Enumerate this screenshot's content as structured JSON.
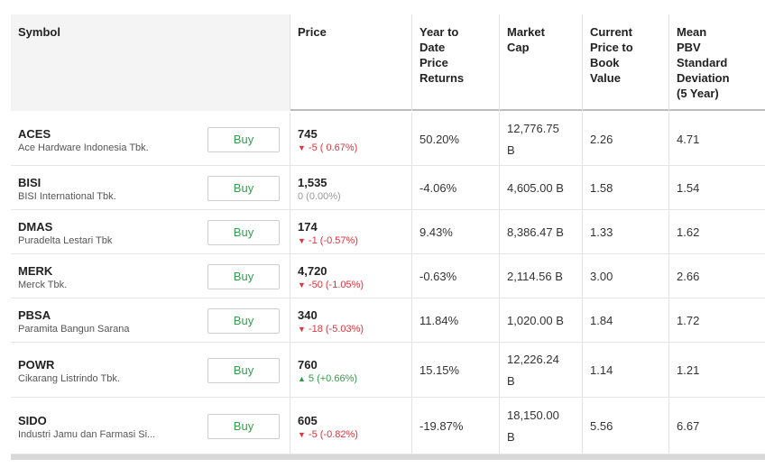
{
  "headers": {
    "symbol": "Symbol",
    "price": "Price",
    "ytd": [
      "Year to",
      "Date",
      "Price",
      "Returns"
    ],
    "mcap": [
      "Market",
      "Cap"
    ],
    "pbv": [
      "Current",
      "Price to",
      "Book",
      "Value"
    ],
    "mean": [
      "Mean",
      "PBV",
      "Standard",
      "Deviation",
      "(5 Year)"
    ]
  },
  "buy_label": "Buy",
  "colors": {
    "down": "#d9363e",
    "up": "#2f9e44",
    "flat": "#9a9a9a",
    "buy": "#2fa34a"
  },
  "rows": [
    {
      "symbol": "ACES",
      "name": "Ace Hardware Indonesia Tbk.",
      "price": "745",
      "change": "-5 ( 0.67%)",
      "dir": "down",
      "ytd": "50.20%",
      "mcap": [
        "12,776.75",
        "B"
      ],
      "pbv": "2.26",
      "mean": "4.71"
    },
    {
      "symbol": "BISI",
      "name": "BISI International Tbk.",
      "price": "1,535",
      "change": "0 (0.00%)",
      "dir": "flat",
      "ytd": "-4.06%",
      "mcap": [
        "4,605.00 B"
      ],
      "pbv": "1.58",
      "mean": "1.54"
    },
    {
      "symbol": "DMAS",
      "name": "Puradelta Lestari Tbk",
      "price": "174",
      "change": "-1 (-0.57%)",
      "dir": "down",
      "ytd": "9.43%",
      "mcap": [
        "8,386.47 B"
      ],
      "pbv": "1.33",
      "mean": "1.62"
    },
    {
      "symbol": "MERK",
      "name": "Merck Tbk.",
      "price": "4,720",
      "change": "-50 (-1.05%)",
      "dir": "down",
      "ytd": "-0.63%",
      "mcap": [
        "2,114.56 B"
      ],
      "pbv": "3.00",
      "mean": "2.66"
    },
    {
      "symbol": "PBSA",
      "name": "Paramita Bangun Sarana",
      "price": "340",
      "change": "-18 (-5.03%)",
      "dir": "down",
      "ytd": "11.84%",
      "mcap": [
        "1,020.00 B"
      ],
      "pbv": "1.84",
      "mean": "1.72"
    },
    {
      "symbol": "POWR",
      "name": "Cikarang Listrindo Tbk.",
      "price": "760",
      "change": "5 (+0.66%)",
      "dir": "up",
      "ytd": "15.15%",
      "mcap": [
        "12,226.24",
        "B"
      ],
      "pbv": "1.14",
      "mean": "1.21"
    },
    {
      "symbol": "SIDO",
      "name": "Industri Jamu dan Farmasi Si...",
      "price": "605",
      "change": "-5 (-0.82%)",
      "dir": "down",
      "ytd": "-19.87%",
      "mcap": [
        "18,150.00",
        "B"
      ],
      "pbv": "5.56",
      "mean": "6.67"
    }
  ]
}
